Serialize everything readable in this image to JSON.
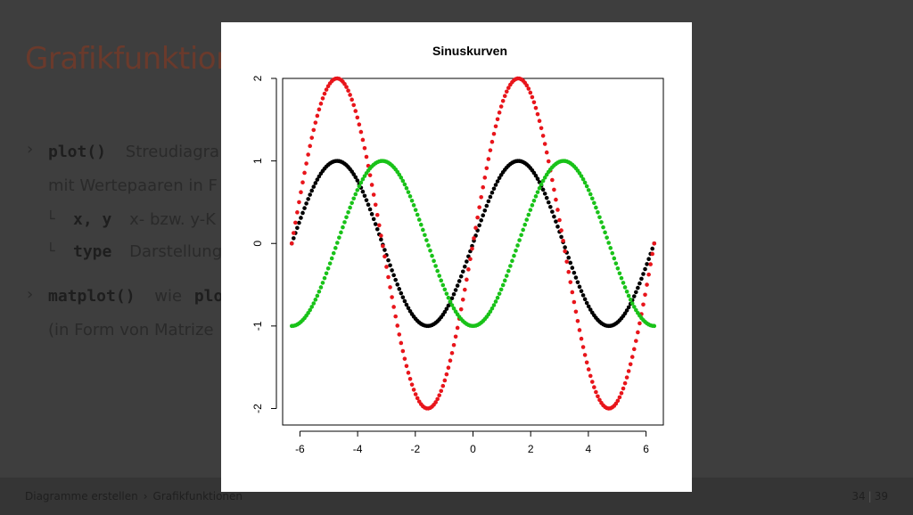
{
  "slide": {
    "title": "Grafikfunktion",
    "bullets": [
      {
        "code": "plot()",
        "text": "Streudiagra",
        "continuation": "mit Wertepaaren in F"
      },
      {
        "code": "x, y",
        "text": "x- bzw. y-K"
      },
      {
        "code": "type",
        "text": "Darstellung"
      },
      {
        "code": "matplot()",
        "text": "wie",
        "code2": "plo",
        "continuation": "(in Form von Matrize"
      }
    ]
  },
  "footer": {
    "breadcrumb": [
      "Diagramme erstellen",
      "Grafikfunktionen"
    ],
    "page_current": "34",
    "page_total": "39"
  },
  "chart_data": {
    "type": "scatter",
    "title": "Sinuskurven",
    "xlabel": "",
    "ylabel": "",
    "xlim": [
      -6.6,
      6.6
    ],
    "ylim": [
      -2.2,
      2.0
    ],
    "xticks": [
      -6,
      -4,
      -2,
      0,
      2,
      4,
      6
    ],
    "yticks": [
      -2,
      -1,
      0,
      1,
      2
    ],
    "x_range": [
      -6.283,
      6.283
    ],
    "n_points": 200,
    "series": [
      {
        "function": "sin(x)",
        "color": "#000000"
      },
      {
        "function": "2*sin(x)",
        "color": "#e8151b"
      },
      {
        "function": "sin(x - pi/2)",
        "color": "#19c219"
      }
    ]
  }
}
